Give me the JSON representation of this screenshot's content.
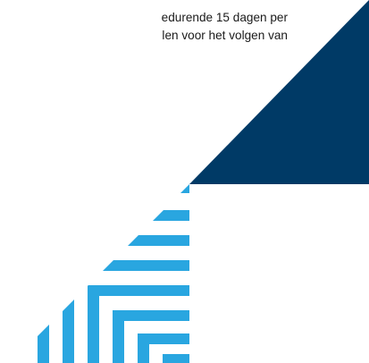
{
  "document": {
    "lines": [
      "edurende 15 dagen per",
      "len voor het volgen van"
    ]
  },
  "graphic": {
    "name": "corner-decoration",
    "colors": {
      "navy": "#003a66",
      "stripe_blue": "#29a6e0"
    }
  }
}
